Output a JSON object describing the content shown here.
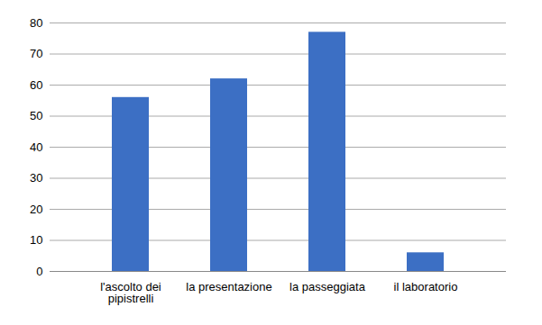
{
  "chart_data": {
    "type": "bar",
    "categories": [
      "l'ascolto dei pipistrelli",
      "la presentazione",
      "la passeggiata",
      "il laboratorio"
    ],
    "values": [
      56,
      62,
      77,
      6
    ],
    "color": "#3c6fc4",
    "ylim": [
      0,
      80
    ],
    "yticks": [
      0,
      10,
      20,
      30,
      40,
      50,
      60,
      70,
      80
    ],
    "grid": true
  }
}
